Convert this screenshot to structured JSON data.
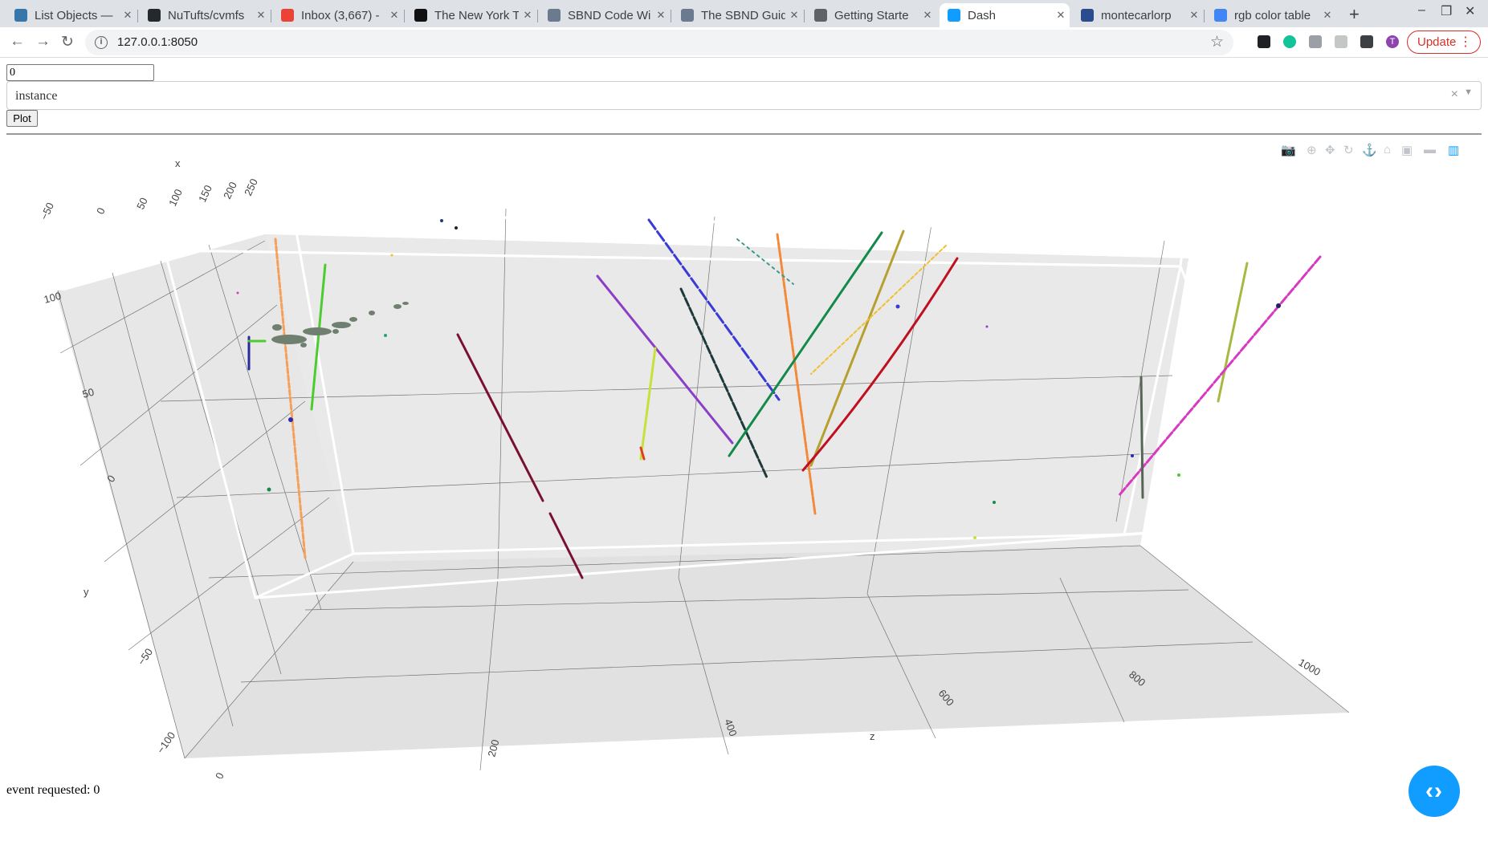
{
  "browser": {
    "tabs": [
      {
        "title": "List Objects —",
        "favicon_color": "#3776ab",
        "active": false
      },
      {
        "title": "NuTufts/cvmfs",
        "favicon_color": "#24292e",
        "active": false
      },
      {
        "title": "Inbox (3,667) -",
        "favicon_color": "#ea4335",
        "active": false
      },
      {
        "title": "The New York T",
        "favicon_color": "#111111",
        "active": false
      },
      {
        "title": "SBND Code Wi",
        "favicon_color": "#6b7a8f",
        "active": false
      },
      {
        "title": "The SBND Guid",
        "favicon_color": "#6b7a8f",
        "active": false
      },
      {
        "title": "Getting Starte",
        "favicon_color": "#5f6368",
        "active": false
      },
      {
        "title": "Dash",
        "favicon_color": "#119dff",
        "active": true
      },
      {
        "title": "montecarlorp",
        "favicon_color": "#2a4b8d",
        "active": false
      },
      {
        "title": "rgb color table",
        "favicon_color": "#4285f4",
        "active": false
      }
    ],
    "close_glyph": "✕",
    "new_tab_glyph": "+",
    "url": "127.0.0.1:8050",
    "update_label": "Update",
    "profile_initial": "T"
  },
  "app": {
    "event_input_value": "0",
    "dropdown_value": "instance",
    "dropdown_clear": "×",
    "plot_button_label": "Plot",
    "status_text": "event requested: 0",
    "debug_button_glyph": "‹›"
  },
  "scene": {
    "type": "3d-scatter",
    "axes": {
      "x": {
        "title": "x",
        "ticks": [
          "−50",
          "0",
          "50",
          "100",
          "150",
          "200",
          "250"
        ]
      },
      "y": {
        "title": "y",
        "ticks": [
          "−100",
          "−50",
          "0",
          "50",
          "100"
        ]
      },
      "z": {
        "title": "z",
        "ticks": [
          "0",
          "200",
          "400",
          "600",
          "800",
          "1000"
        ]
      }
    },
    "background_color": "#e5e5e5",
    "grid_color": "#444444",
    "detector_box_color": "#ffffff",
    "track_colors": [
      "#f5a05a",
      "#4ccc2e",
      "#7a1030",
      "#8b3fc7",
      "#c7e03a",
      "#3a3ad6",
      "#1d3a3a",
      "#f28a3a",
      "#148a4a",
      "#b5a030",
      "#f0c030",
      "#c01020",
      "#a8b840",
      "#d63ac0",
      "#556655",
      "#708070"
    ]
  }
}
